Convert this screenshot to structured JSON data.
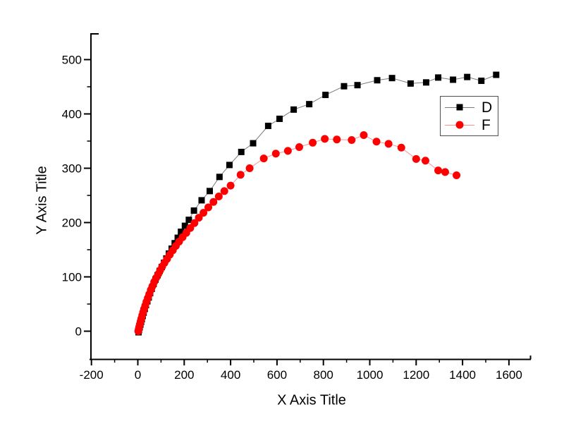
{
  "chart_data": {
    "type": "scatter",
    "title": "",
    "xlabel": "X Axis Title",
    "ylabel": "Y Axis Title",
    "xlim": [
      -200,
      1700
    ],
    "ylim": [
      -50,
      550
    ],
    "grid": false,
    "background_color": "#ffffff",
    "axis_color": "#000000",
    "legend": {
      "position": "inside-top-right",
      "entries": [
        "D",
        "F"
      ]
    },
    "x_major_ticks": [
      {
        "value": -200,
        "label": "-200"
      },
      {
        "value": 0,
        "label": "0"
      },
      {
        "value": 200,
        "label": "200"
      },
      {
        "value": 400,
        "label": "400"
      },
      {
        "value": 600,
        "label": "600"
      },
      {
        "value": 800,
        "label": "800"
      },
      {
        "value": 1000,
        "label": "1000"
      },
      {
        "value": 1200,
        "label": "1200"
      },
      {
        "value": 1400,
        "label": "1400"
      },
      {
        "value": 1600,
        "label": "1600"
      }
    ],
    "x_minor_ticks": [
      -100,
      100,
      300,
      500,
      700,
      900,
      1100,
      1300,
      1500
    ],
    "y_major_ticks": [
      {
        "value": 0,
        "label": "0"
      },
      {
        "value": 100,
        "label": "100"
      },
      {
        "value": 200,
        "label": "200"
      },
      {
        "value": 300,
        "label": "300"
      },
      {
        "value": 400,
        "label": "400"
      },
      {
        "value": 500,
        "label": "500"
      }
    ],
    "y_minor_ticks": [
      50,
      150,
      250,
      350,
      450
    ],
    "series": [
      {
        "name": "D",
        "marker": "square",
        "marker_color": "#000000",
        "line_color": "#7a7a7a",
        "points": [
          [
            3,
            -2
          ],
          [
            5,
            2
          ],
          [
            8,
            7
          ],
          [
            11,
            12
          ],
          [
            14,
            17
          ],
          [
            17,
            22
          ],
          [
            21,
            28
          ],
          [
            25,
            34
          ],
          [
            30,
            41
          ],
          [
            35,
            48
          ],
          [
            41,
            55
          ],
          [
            47,
            62
          ],
          [
            53,
            70
          ],
          [
            60,
            78
          ],
          [
            68,
            87
          ],
          [
            76,
            95
          ],
          [
            85,
            103
          ],
          [
            94,
            111
          ],
          [
            103,
            118
          ],
          [
            113,
            126
          ],
          [
            123,
            134
          ],
          [
            134,
            143
          ],
          [
            146,
            152
          ],
          [
            159,
            162
          ],
          [
            172,
            172
          ],
          [
            186,
            183
          ],
          [
            203,
            194
          ],
          [
            220,
            205
          ],
          [
            242,
            222
          ],
          [
            275,
            241
          ],
          [
            310,
            258
          ],
          [
            352,
            284
          ],
          [
            395,
            306
          ],
          [
            446,
            330
          ],
          [
            497,
            346
          ],
          [
            562,
            378
          ],
          [
            611,
            391
          ],
          [
            672,
            408
          ],
          [
            739,
            418
          ],
          [
            809,
            435
          ],
          [
            889,
            451
          ],
          [
            947,
            453
          ],
          [
            1032,
            462
          ],
          [
            1096,
            466
          ],
          [
            1176,
            456
          ],
          [
            1243,
            458
          ],
          [
            1295,
            467
          ],
          [
            1359,
            463
          ],
          [
            1420,
            468
          ],
          [
            1481,
            461
          ],
          [
            1545,
            472
          ]
        ]
      },
      {
        "name": "F",
        "marker": "circle",
        "marker_color": "#ff0000",
        "line_color": "#ff9090",
        "points": [
          [
            2,
            0
          ],
          [
            4,
            4
          ],
          [
            6,
            8
          ],
          [
            9,
            13
          ],
          [
            12,
            18
          ],
          [
            15,
            23
          ],
          [
            19,
            29
          ],
          [
            23,
            35
          ],
          [
            27,
            41
          ],
          [
            32,
            47
          ],
          [
            37,
            54
          ],
          [
            43,
            61
          ],
          [
            49,
            68
          ],
          [
            56,
            76
          ],
          [
            63,
            83
          ],
          [
            71,
            91
          ],
          [
            79,
            98
          ],
          [
            88,
            105
          ],
          [
            96,
            112
          ],
          [
            105,
            119
          ],
          [
            115,
            126
          ],
          [
            126,
            133
          ],
          [
            138,
            141
          ],
          [
            151,
            149
          ],
          [
            164,
            157
          ],
          [
            178,
            165
          ],
          [
            193,
            173
          ],
          [
            209,
            181
          ],
          [
            226,
            190
          ],
          [
            244,
            199
          ],
          [
            263,
            209
          ],
          [
            283,
            218
          ],
          [
            304,
            228
          ],
          [
            326,
            238
          ],
          [
            349,
            248
          ],
          [
            373,
            258
          ],
          [
            400,
            268
          ],
          [
            443,
            288
          ],
          [
            482,
            300
          ],
          [
            543,
            318
          ],
          [
            595,
            327
          ],
          [
            647,
            332
          ],
          [
            696,
            339
          ],
          [
            754,
            347
          ],
          [
            806,
            354
          ],
          [
            858,
            353
          ],
          [
            922,
            352
          ],
          [
            974,
            361
          ],
          [
            1029,
            349
          ],
          [
            1081,
            345
          ],
          [
            1136,
            338
          ],
          [
            1200,
            317
          ],
          [
            1240,
            314
          ],
          [
            1295,
            296
          ],
          [
            1325,
            293
          ],
          [
            1374,
            287
          ]
        ]
      }
    ]
  }
}
